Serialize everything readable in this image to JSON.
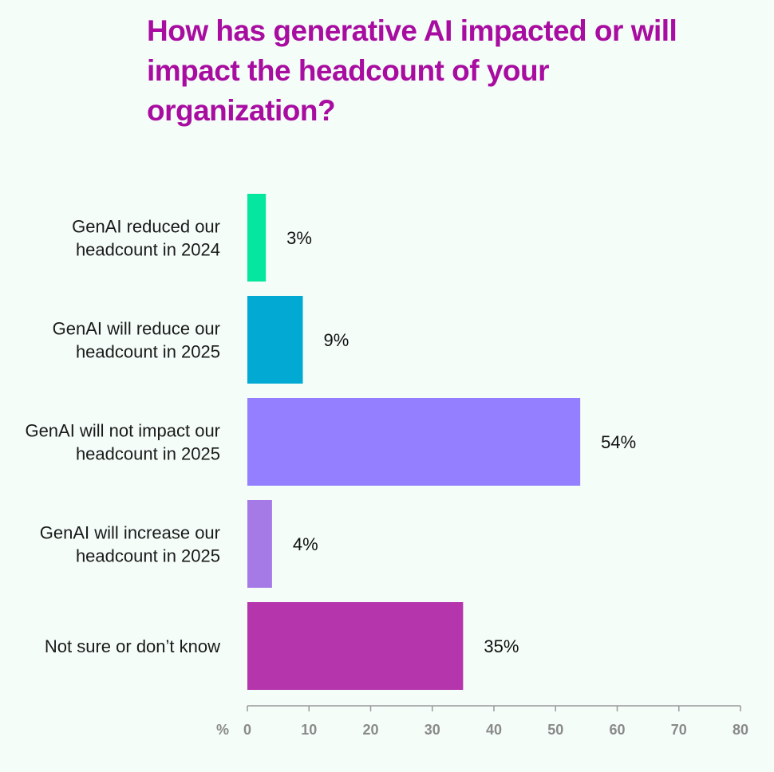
{
  "chart_data": {
    "type": "bar",
    "orientation": "horizontal",
    "title": "How has generative AI impacted or will impact the headcount of your organization?",
    "categories": [
      [
        "GenAI reduced our",
        "headcount in 2024"
      ],
      [
        "GenAI will reduce our",
        "headcount in 2025"
      ],
      [
        "GenAI will not impact our",
        "headcount in 2025"
      ],
      [
        "GenAI will increase our",
        "headcount in 2025"
      ],
      [
        "Not sure or don’t know"
      ]
    ],
    "values": [
      3,
      9,
      54,
      4,
      35
    ],
    "value_labels": [
      "3%",
      "9%",
      "54%",
      "4%",
      "35%"
    ],
    "colors": [
      "#05e69e",
      "#02a9d2",
      "#937fff",
      "#a57ae6",
      "#b535ad"
    ],
    "xlim": [
      0,
      80
    ],
    "xticks": [
      0,
      10,
      20,
      30,
      40,
      50,
      60,
      70,
      80
    ],
    "xunit": "%",
    "grid": false,
    "legend": "none"
  }
}
